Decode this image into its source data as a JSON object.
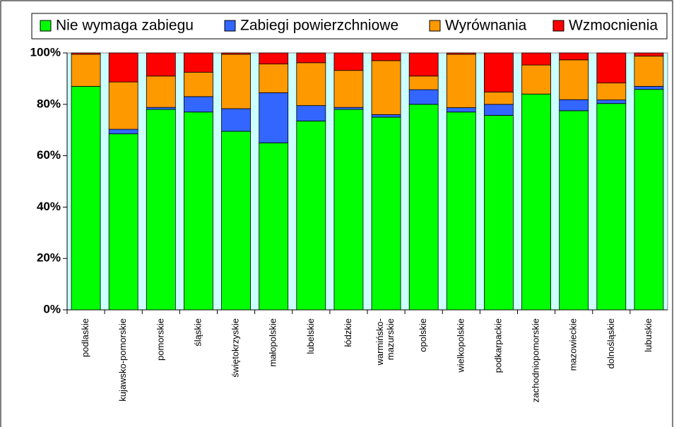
{
  "chart_data": {
    "type": "stacked_bar",
    "categories": [
      "podlaskie",
      "kujawsko-pomorskie",
      "pomorskie",
      "śląskie",
      "świętokrzyskie",
      "małopolskie",
      "lubelskie",
      "łódzkie",
      "warmińsko-\nmazurskie",
      "opolskie",
      "wielkopolskie",
      "podkarpackie",
      "zachodniopomorskie",
      "mazowieckie",
      "dolnośląskie",
      "lubuskie"
    ],
    "series": [
      {
        "name": "Nie wymaga zabiegu",
        "color": "#00ff00",
        "values": [
          87,
          68.5,
          78,
          77,
          69.5,
          65,
          73.5,
          78,
          75,
          80,
          77,
          75.7,
          84,
          77.5,
          80.3,
          85.8
        ]
      },
      {
        "name": "Zabiegi powierzchniowe",
        "color": "#3366ff",
        "values": [
          0,
          1.8,
          0.8,
          6,
          8.8,
          19.5,
          6,
          0.8,
          1,
          5.7,
          1.7,
          4.3,
          0,
          4.3,
          1.4,
          1.2
        ]
      },
      {
        "name": "Wyrównania",
        "color": "#ff9900",
        "values": [
          12.5,
          18.4,
          12.2,
          9.5,
          21.2,
          11.2,
          16.7,
          14.4,
          21,
          5.3,
          20.8,
          4.8,
          11.3,
          15.5,
          6.6,
          11.8
        ]
      },
      {
        "name": "Wzmocnienia",
        "color": "#ff0000",
        "values": [
          0.5,
          11.3,
          9,
          7.5,
          0.5,
          4.3,
          3.8,
          6.8,
          3,
          9,
          0.5,
          15.2,
          4.7,
          2.7,
          11.7,
          1.2
        ]
      }
    ],
    "ylim": [
      0,
      100
    ],
    "yticks": [
      {
        "value": 0,
        "label": "0%"
      },
      {
        "value": 20,
        "label": "20%"
      },
      {
        "value": 40,
        "label": "40%"
      },
      {
        "value": 60,
        "label": "60%"
      },
      {
        "value": 80,
        "label": "80%"
      },
      {
        "value": 100,
        "label": "100%"
      }
    ],
    "plot_background": "#ccffff"
  }
}
